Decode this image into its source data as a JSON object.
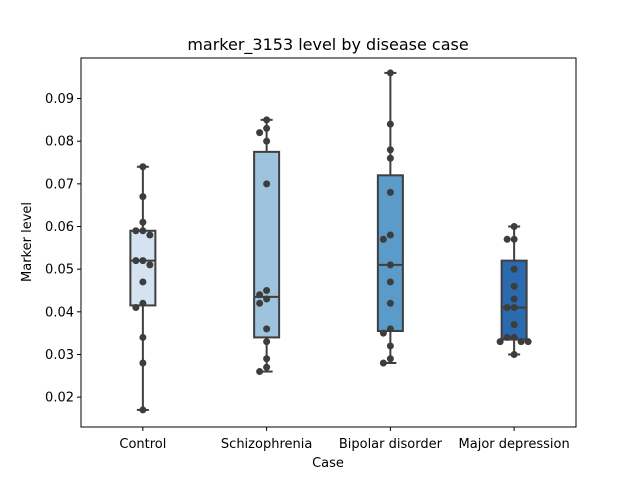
{
  "chart_data": {
    "type": "box",
    "title": "marker_3153 level by disease case",
    "xlabel": "Case",
    "ylabel": "Marker level",
    "ylim": [
      0.013,
      0.0995
    ],
    "yticks": [
      0.02,
      0.03,
      0.04,
      0.05,
      0.06,
      0.07,
      0.08,
      0.09
    ],
    "ytick_labels": [
      "0.02",
      "0.03",
      "0.04",
      "0.05",
      "0.06",
      "0.07",
      "0.08",
      "0.09"
    ],
    "grid": false,
    "categories": [
      "Control",
      "Schizophrenia",
      "Bipolar disorder",
      "Major depression"
    ],
    "series": [
      {
        "category": "Control",
        "color": "#d5e2f2",
        "box": {
          "whisker_low": 0.017,
          "q1": 0.0415,
          "median": 0.052,
          "q3": 0.059,
          "whisker_high": 0.074
        },
        "points": [
          0.074,
          0.067,
          0.061,
          0.059,
          0.059,
          0.058,
          0.052,
          0.052,
          0.051,
          0.047,
          0.042,
          0.041,
          0.034,
          0.028,
          0.017
        ]
      },
      {
        "category": "Schizophrenia",
        "color": "#9dc3dd",
        "box": {
          "whisker_low": 0.026,
          "q1": 0.034,
          "median": 0.0435,
          "q3": 0.0775,
          "whisker_high": 0.085
        },
        "points": [
          0.085,
          0.083,
          0.082,
          0.08,
          0.07,
          0.045,
          0.044,
          0.043,
          0.042,
          0.036,
          0.033,
          0.029,
          0.027,
          0.026
        ]
      },
      {
        "category": "Bipolar disorder",
        "color": "#5a9bc9",
        "box": {
          "whisker_low": 0.028,
          "q1": 0.0355,
          "median": 0.051,
          "q3": 0.072,
          "whisker_high": 0.096
        },
        "points": [
          0.096,
          0.084,
          0.078,
          0.076,
          0.068,
          0.058,
          0.057,
          0.051,
          0.047,
          0.042,
          0.036,
          0.035,
          0.032,
          0.029,
          0.028
        ]
      },
      {
        "category": "Major depression",
        "color": "#2a6aaf",
        "box": {
          "whisker_low": 0.03,
          "q1": 0.0335,
          "median": 0.041,
          "q3": 0.052,
          "whisker_high": 0.06
        },
        "points": [
          0.06,
          0.057,
          0.057,
          0.05,
          0.046,
          0.043,
          0.041,
          0.041,
          0.037,
          0.034,
          0.034,
          0.033,
          0.033,
          0.033,
          0.03
        ]
      }
    ]
  }
}
